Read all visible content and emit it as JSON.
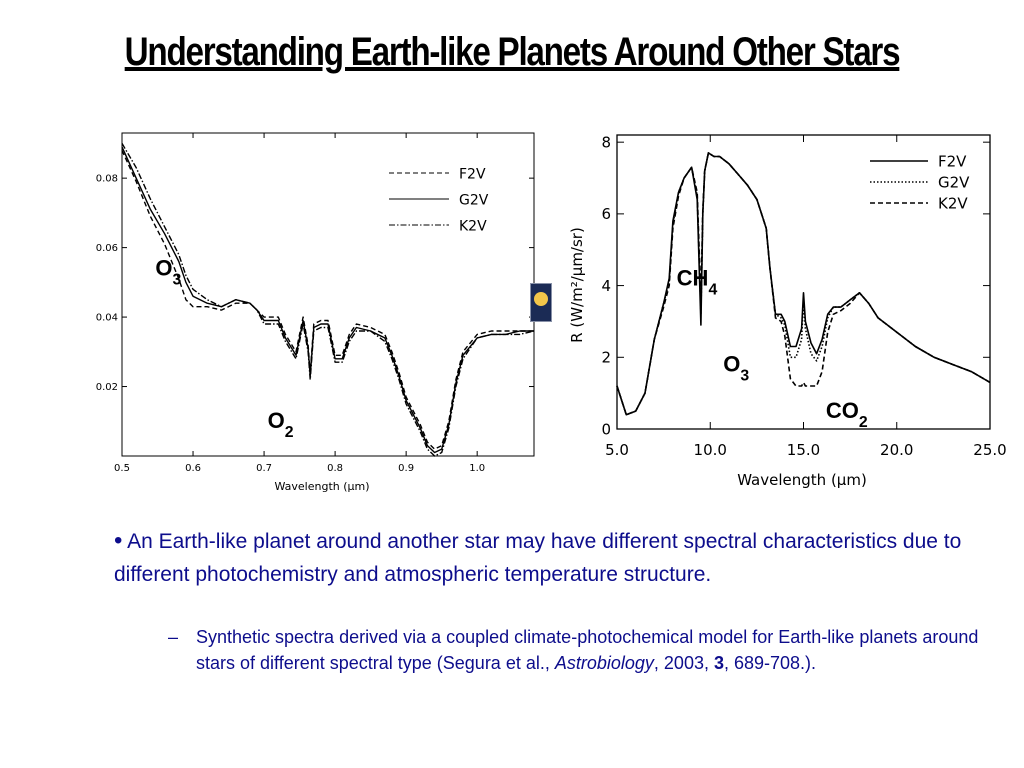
{
  "slide": {
    "title": "Understanding Earth-like Planets Around Other Stars",
    "bullet_main": "An Earth-like planet around another star may have different spectral characteristics due to different photochemistry and atmospheric temperature structure.",
    "bullet_sub": {
      "dash": "–",
      "text_1": "Synthetic spectra derived via a coupled climate-photochemical model for Earth-like planets around stars of different spectral type  (Segura et al., ",
      "journal": "Astrobiology",
      "text_2": ", 2003, ",
      "volume": "3",
      "text_3": ", 689-708.)."
    }
  },
  "icon": {
    "name": "hubble-telescope-icon",
    "bg": "#1b2b55",
    "accent": "#f3c64a"
  },
  "chart_data": [
    {
      "type": "line",
      "title": "",
      "xlabel": "Wavelength (μm)",
      "ylabel": "",
      "xlim": [
        0.5,
        1.08
      ],
      "ylim": [
        0.0,
        0.093
      ],
      "x_ticks": [
        0.5,
        0.6,
        0.7,
        0.8,
        0.9,
        1.0
      ],
      "x_tick_labels": [
        "0.5",
        "0.6",
        "0.7",
        "0.8",
        "0.9",
        "1.0"
      ],
      "y_ticks": [
        0.02,
        0.04,
        0.06,
        0.08
      ],
      "y_tick_labels": [
        "0.02",
        "0.04",
        "0.06",
        "0.08"
      ],
      "legend_position": "top-right",
      "series": [
        {
          "name": "F2V",
          "dash": "dashed",
          "x": [
            0.5,
            0.52,
            0.54,
            0.56,
            0.58,
            0.59,
            0.6,
            0.62,
            0.64,
            0.66,
            0.68,
            0.69,
            0.7,
            0.72,
            0.73,
            0.745,
            0.755,
            0.762,
            0.765,
            0.77,
            0.78,
            0.79,
            0.8,
            0.81,
            0.82,
            0.83,
            0.85,
            0.87,
            0.88,
            0.89,
            0.9,
            0.92,
            0.93,
            0.94,
            0.95,
            0.96,
            0.97,
            0.98,
            1.0,
            1.02,
            1.04,
            1.06,
            1.08
          ],
          "y": [
            0.088,
            0.079,
            0.069,
            0.061,
            0.051,
            0.045,
            0.043,
            0.043,
            0.042,
            0.044,
            0.044,
            0.042,
            0.04,
            0.04,
            0.035,
            0.03,
            0.04,
            0.032,
            0.024,
            0.038,
            0.039,
            0.039,
            0.029,
            0.029,
            0.035,
            0.038,
            0.037,
            0.035,
            0.03,
            0.024,
            0.017,
            0.009,
            0.004,
            0.002,
            0.003,
            0.01,
            0.022,
            0.03,
            0.035,
            0.036,
            0.036,
            0.036,
            0.036
          ]
        },
        {
          "name": "G2V",
          "dash": "solid",
          "x": [
            0.5,
            0.52,
            0.54,
            0.56,
            0.58,
            0.59,
            0.6,
            0.62,
            0.64,
            0.66,
            0.68,
            0.69,
            0.7,
            0.72,
            0.73,
            0.745,
            0.755,
            0.762,
            0.765,
            0.77,
            0.78,
            0.79,
            0.8,
            0.81,
            0.82,
            0.83,
            0.85,
            0.87,
            0.88,
            0.89,
            0.9,
            0.92,
            0.93,
            0.94,
            0.95,
            0.96,
            0.97,
            0.98,
            1.0,
            1.02,
            1.04,
            1.06,
            1.08
          ],
          "y": [
            0.089,
            0.08,
            0.071,
            0.064,
            0.056,
            0.05,
            0.046,
            0.044,
            0.043,
            0.045,
            0.044,
            0.042,
            0.039,
            0.039,
            0.034,
            0.029,
            0.039,
            0.031,
            0.023,
            0.037,
            0.038,
            0.038,
            0.028,
            0.028,
            0.034,
            0.037,
            0.036,
            0.034,
            0.029,
            0.023,
            0.016,
            0.008,
            0.003,
            0.001,
            0.002,
            0.009,
            0.021,
            0.029,
            0.034,
            0.035,
            0.035,
            0.036,
            0.036
          ]
        },
        {
          "name": "K2V",
          "dash": "dash-dot",
          "x": [
            0.5,
            0.52,
            0.54,
            0.56,
            0.58,
            0.59,
            0.6,
            0.62,
            0.64,
            0.66,
            0.68,
            0.69,
            0.7,
            0.72,
            0.73,
            0.745,
            0.755,
            0.762,
            0.765,
            0.77,
            0.78,
            0.79,
            0.8,
            0.81,
            0.82,
            0.83,
            0.85,
            0.87,
            0.88,
            0.89,
            0.9,
            0.92,
            0.93,
            0.94,
            0.95,
            0.96,
            0.97,
            0.98,
            1.0,
            1.02,
            1.04,
            1.06,
            1.08
          ],
          "y": [
            0.09,
            0.083,
            0.074,
            0.066,
            0.058,
            0.052,
            0.048,
            0.045,
            0.043,
            0.045,
            0.044,
            0.042,
            0.038,
            0.038,
            0.033,
            0.028,
            0.038,
            0.03,
            0.022,
            0.036,
            0.037,
            0.037,
            0.027,
            0.027,
            0.033,
            0.036,
            0.036,
            0.033,
            0.028,
            0.022,
            0.015,
            0.007,
            0.002,
            0.0,
            0.001,
            0.008,
            0.02,
            0.028,
            0.034,
            0.035,
            0.035,
            0.035,
            0.036
          ]
        }
      ],
      "annotations": [
        {
          "base": "O",
          "sub": "3",
          "x": 0.547,
          "y": 0.052
        },
        {
          "base": "O",
          "sub": "2",
          "x": 0.705,
          "y": 0.008
        }
      ]
    },
    {
      "type": "line",
      "title": "",
      "xlabel": "Wavelength (μm)",
      "ylabel": "R (W/m²/μm/sr)",
      "xlim": [
        5.0,
        25.0
      ],
      "ylim": [
        0,
        8.2
      ],
      "x_ticks": [
        5.0,
        10.0,
        15.0,
        20.0,
        25.0
      ],
      "x_tick_labels": [
        "5.0",
        "10.0",
        "15.0",
        "20.0",
        "25.0"
      ],
      "y_ticks": [
        0,
        2,
        4,
        6,
        8
      ],
      "y_tick_labels": [
        "0",
        "2",
        "4",
        "6",
        "8"
      ],
      "legend_position": "top-right",
      "series": [
        {
          "name": "F2V",
          "dash": "solid",
          "x": [
            5.0,
            5.5,
            6.0,
            6.5,
            7.0,
            7.5,
            7.8,
            8.0,
            8.3,
            8.6,
            9.0,
            9.3,
            9.5,
            9.6,
            9.7,
            9.9,
            10.2,
            10.5,
            11.0,
            11.5,
            12.0,
            12.5,
            13.0,
            13.2,
            13.5,
            13.8,
            14.0,
            14.3,
            14.6,
            14.9,
            15.0,
            15.1,
            15.4,
            15.7,
            16.0,
            16.3,
            16.6,
            17.0,
            17.5,
            18.0,
            18.5,
            19.0,
            19.5,
            20.0,
            21.0,
            22.0,
            23.0,
            24.0,
            25.0
          ],
          "y": [
            1.2,
            0.4,
            0.5,
            1.0,
            2.5,
            3.5,
            4.2,
            5.8,
            6.6,
            7.0,
            7.3,
            6.4,
            2.9,
            6.0,
            7.2,
            7.7,
            7.6,
            7.6,
            7.4,
            7.1,
            6.8,
            6.4,
            5.6,
            4.5,
            3.2,
            3.2,
            3.0,
            2.3,
            2.3,
            2.8,
            3.8,
            3.0,
            2.4,
            2.1,
            2.5,
            3.2,
            3.4,
            3.4,
            3.6,
            3.8,
            3.5,
            3.1,
            2.9,
            2.7,
            2.3,
            2.0,
            1.8,
            1.6,
            1.3
          ]
        },
        {
          "name": "G2V",
          "dash": "dotted",
          "x": [
            5.0,
            5.5,
            6.0,
            6.5,
            7.0,
            7.5,
            7.8,
            8.0,
            8.3,
            8.6,
            9.0,
            9.3,
            9.5,
            9.6,
            9.7,
            9.9,
            10.2,
            10.5,
            11.0,
            11.5,
            12.0,
            12.5,
            13.0,
            13.2,
            13.5,
            13.8,
            14.0,
            14.3,
            14.6,
            14.9,
            15.0,
            15.1,
            15.4,
            15.7,
            16.0,
            16.3,
            16.6,
            17.0,
            17.5,
            18.0,
            18.5,
            19.0,
            19.5,
            20.0,
            21.0,
            22.0,
            23.0,
            24.0,
            25.0
          ],
          "y": [
            1.2,
            0.4,
            0.5,
            1.0,
            2.5,
            3.5,
            4.1,
            5.7,
            6.6,
            7.0,
            7.3,
            6.5,
            3.2,
            6.0,
            7.2,
            7.7,
            7.6,
            7.6,
            7.4,
            7.1,
            6.8,
            6.4,
            5.6,
            4.5,
            3.2,
            3.1,
            2.9,
            2.0,
            2.0,
            2.5,
            3.6,
            2.8,
            2.1,
            1.9,
            2.3,
            3.1,
            3.4,
            3.4,
            3.6,
            3.8,
            3.5,
            3.1,
            2.9,
            2.7,
            2.3,
            2.0,
            1.8,
            1.6,
            1.3
          ]
        },
        {
          "name": "K2V",
          "dash": "dashed",
          "x": [
            5.0,
            5.5,
            6.0,
            6.5,
            7.0,
            7.5,
            7.8,
            8.0,
            8.3,
            8.6,
            9.0,
            9.3,
            9.5,
            9.6,
            9.7,
            9.9,
            10.2,
            10.5,
            11.0,
            11.5,
            12.0,
            12.5,
            13.0,
            13.2,
            13.5,
            13.8,
            14.0,
            14.3,
            14.6,
            14.9,
            15.0,
            15.1,
            15.4,
            15.7,
            16.0,
            16.3,
            16.6,
            17.0,
            17.5,
            18.0,
            18.5,
            19.0,
            19.5,
            20.0,
            21.0,
            22.0,
            23.0,
            24.0,
            25.0
          ],
          "y": [
            1.2,
            0.4,
            0.5,
            1.0,
            2.5,
            3.4,
            4.0,
            5.6,
            6.5,
            7.0,
            7.3,
            6.6,
            3.6,
            6.1,
            7.2,
            7.7,
            7.6,
            7.6,
            7.4,
            7.1,
            6.8,
            6.4,
            5.6,
            4.5,
            3.1,
            3.0,
            2.6,
            1.4,
            1.2,
            1.2,
            1.3,
            1.2,
            1.2,
            1.2,
            1.6,
            2.7,
            3.2,
            3.3,
            3.5,
            3.8,
            3.5,
            3.1,
            2.9,
            2.7,
            2.3,
            2.0,
            1.8,
            1.6,
            1.3
          ]
        }
      ],
      "annotations": [
        {
          "base": "CH",
          "sub": "4",
          "x": 8.2,
          "y": 4.0
        },
        {
          "base": "O",
          "sub": "3",
          "x": 10.7,
          "y": 1.6
        },
        {
          "base": "CO",
          "sub": "2",
          "x": 16.2,
          "y": 0.3
        }
      ]
    }
  ]
}
